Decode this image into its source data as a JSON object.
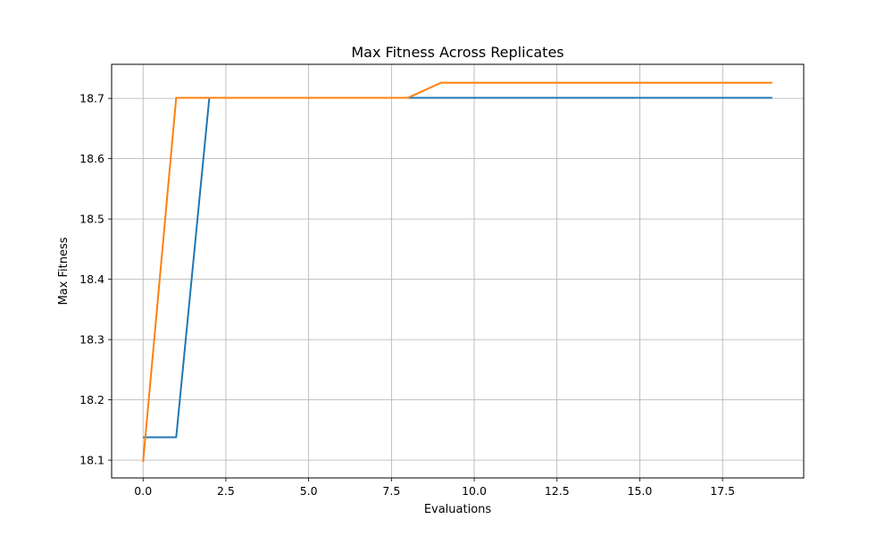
{
  "chart_data": {
    "type": "line",
    "title": "Max Fitness Across Replicates",
    "xlabel": "Evaluations",
    "ylabel": "Max Fitness",
    "xlim": [
      -0.95,
      19.95
    ],
    "ylim": [
      18.0705,
      18.7565
    ],
    "grid": true,
    "x_ticks": [
      0.0,
      2.5,
      5.0,
      7.5,
      10.0,
      12.5,
      15.0,
      17.5
    ],
    "y_ticks": [
      18.1,
      18.2,
      18.3,
      18.4,
      18.5,
      18.6,
      18.7
    ],
    "x": [
      0,
      1,
      2,
      3,
      4,
      5,
      6,
      7,
      8,
      9,
      10,
      11,
      12,
      13,
      14,
      15,
      16,
      17,
      18,
      19
    ],
    "series": [
      {
        "color": "#1f77b4",
        "values": [
          18.138,
          18.138,
          18.701,
          18.701,
          18.701,
          18.701,
          18.701,
          18.701,
          18.701,
          18.701,
          18.701,
          18.701,
          18.701,
          18.701,
          18.701,
          18.701,
          18.701,
          18.701,
          18.701,
          18.701
        ]
      },
      {
        "color": "#ff7f0e",
        "values": [
          18.097,
          18.701,
          18.701,
          18.701,
          18.701,
          18.701,
          18.701,
          18.701,
          18.701,
          18.726,
          18.726,
          18.726,
          18.726,
          18.726,
          18.726,
          18.726,
          18.726,
          18.726,
          18.726,
          18.726
        ]
      }
    ]
  }
}
